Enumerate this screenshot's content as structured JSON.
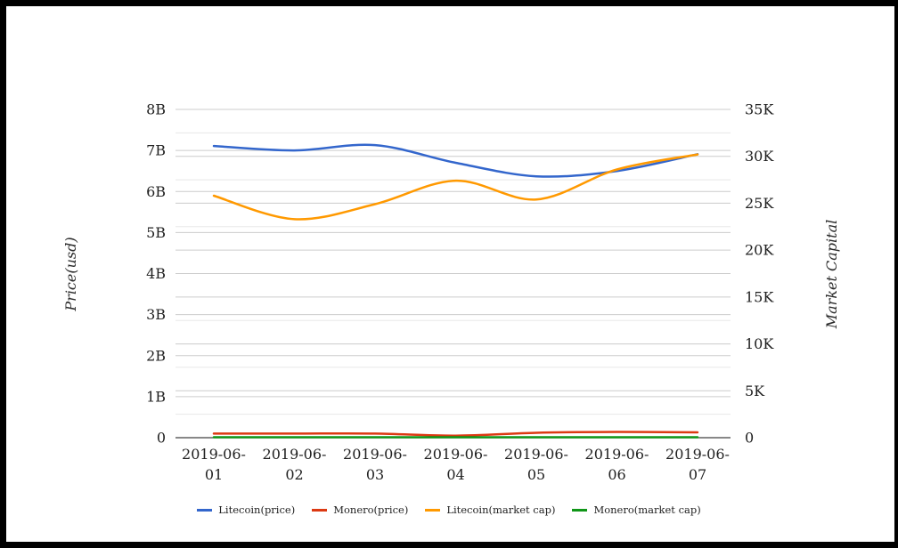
{
  "chart_data": {
    "type": "line",
    "x": [
      "2019-06-01",
      "2019-06-02",
      "2019-06-03",
      "2019-06-04",
      "2019-06-05",
      "2019-06-06",
      "2019-06-07"
    ],
    "series": [
      {
        "name": "Litecoin(price)",
        "axis": "left",
        "color": "#3366cc",
        "values": [
          7.11,
          7.0,
          7.13,
          6.7,
          6.37,
          6.5,
          6.91
        ]
      },
      {
        "name": "Monero(price)",
        "axis": "left",
        "color": "#dc3912",
        "values": [
          0.1,
          0.1,
          0.1,
          0.05,
          0.12,
          0.14,
          0.13
        ]
      },
      {
        "name": "Litecoin(market cap)",
        "axis": "right",
        "color": "#ff9900",
        "values": [
          25.8,
          23.3,
          24.9,
          27.4,
          25.4,
          28.6,
          30.2
        ]
      },
      {
        "name": "Monero(market cap)",
        "axis": "right",
        "color": "#109618",
        "values": [
          0.05,
          0.05,
          0.05,
          0.05,
          0.05,
          0.05,
          0.05
        ]
      }
    ],
    "left_axis": {
      "label": "Price(usd)",
      "unit": "B",
      "min": 0,
      "max": 8,
      "tick_step": 1,
      "grid_step": 1,
      "ticks": [
        "0",
        "1B",
        "2B",
        "3B",
        "4B",
        "5B",
        "6B",
        "7B",
        "8B"
      ]
    },
    "right_axis": {
      "label": "Market Capital",
      "unit": "K",
      "min": 0,
      "max": 35,
      "tick_step": 5,
      "grid_step": 2.5,
      "ticks": [
        "0",
        "5K",
        "10K",
        "15K",
        "20K",
        "25K",
        "30K",
        "35K"
      ]
    },
    "title": "",
    "grid": true,
    "legend_position": "bottom",
    "colors": {
      "grid_major": "#cccccc",
      "grid_minor": "#e8e8e8",
      "zero_line": "#424242",
      "text": "#212121"
    }
  }
}
